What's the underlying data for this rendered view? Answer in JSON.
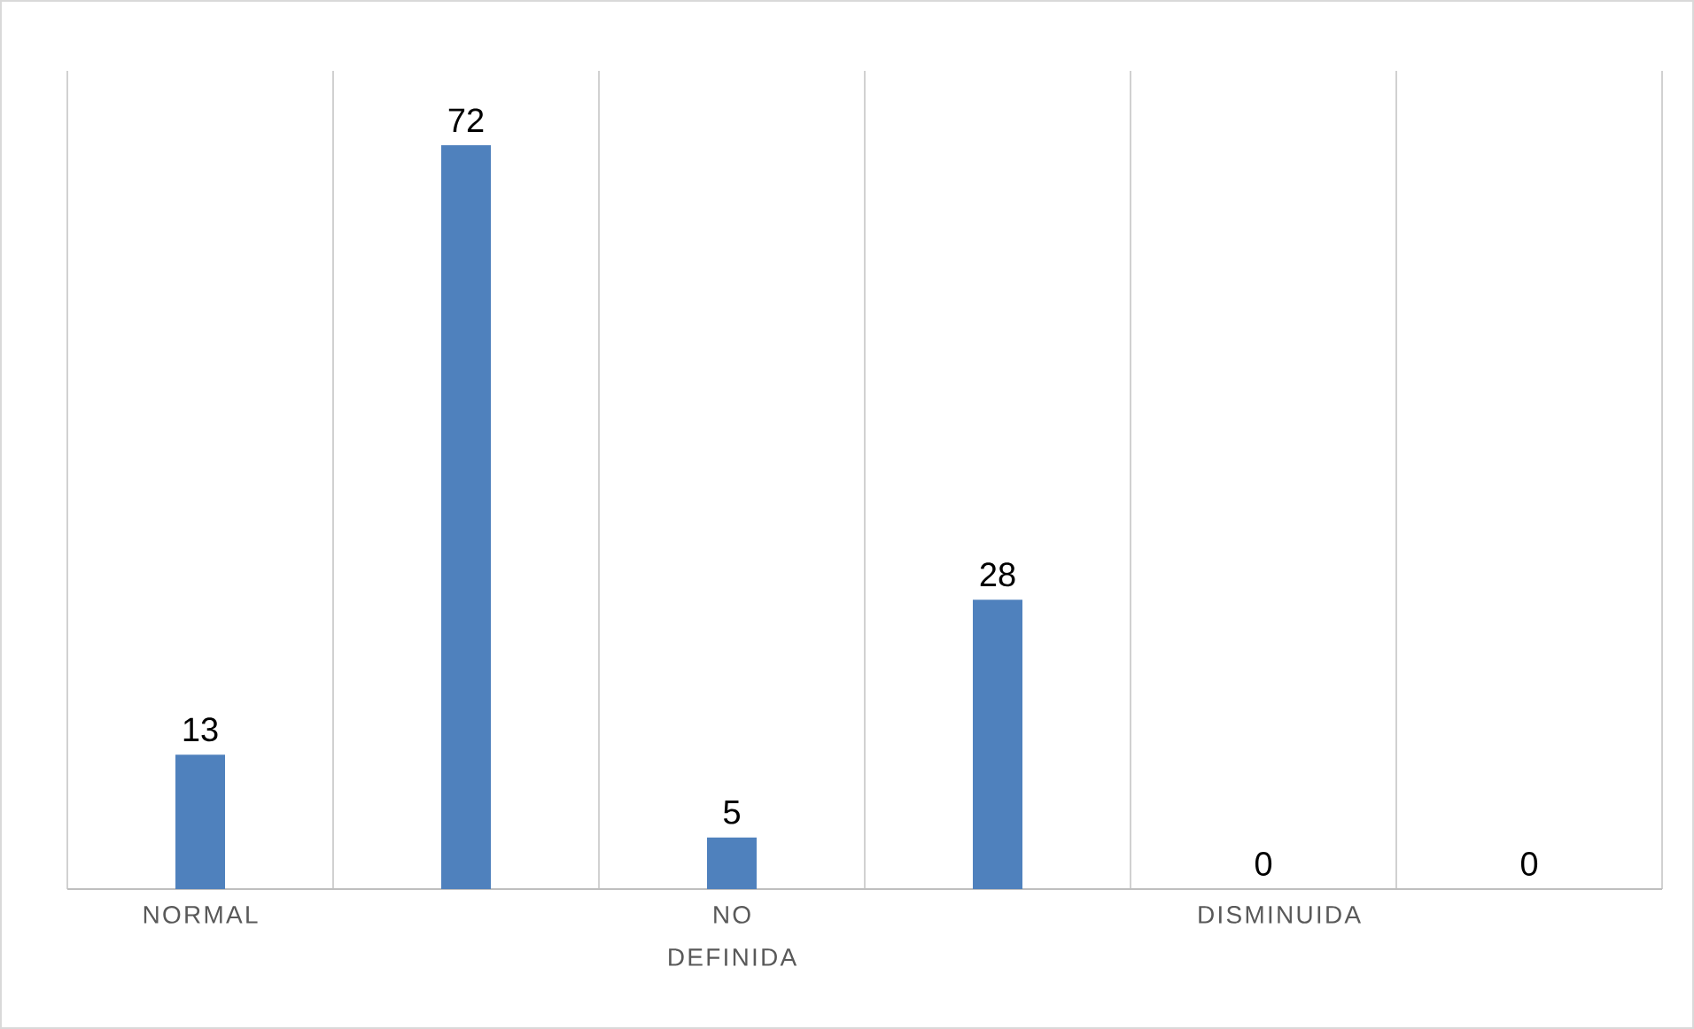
{
  "chart_data": {
    "type": "bar",
    "categories": [
      "NORMAL",
      null,
      "NO DEFINIDA",
      null,
      "DISMINUIDA",
      null
    ],
    "values": [
      13,
      72,
      5,
      28,
      0,
      0
    ],
    "color": "#4f81bd",
    "data_labels": true,
    "grid": "x"
  }
}
